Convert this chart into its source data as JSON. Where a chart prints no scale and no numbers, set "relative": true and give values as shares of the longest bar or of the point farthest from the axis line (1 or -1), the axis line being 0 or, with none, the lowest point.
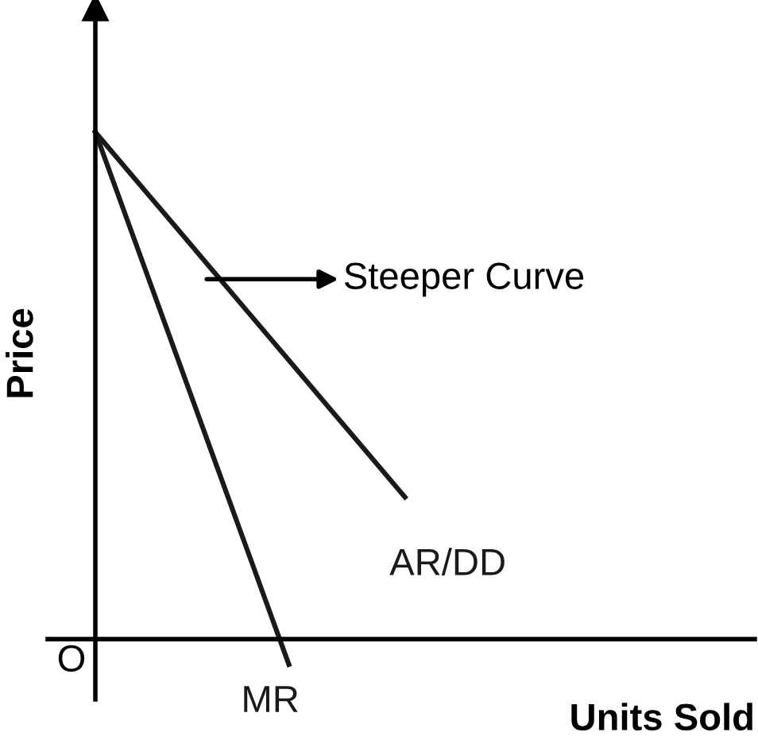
{
  "chart_data": {
    "type": "line",
    "relative": true,
    "xlabel": "Units Sold",
    "ylabel": "Price",
    "annotations": [
      "Steeper Curve",
      "O"
    ],
    "categories": [
      null,
      null,
      null,
      null,
      null,
      null,
      null,
      null,
      null
    ],
    "series": [
      {
        "name": "AR/DD",
        "color": "#1a1a1a",
        "values": [
          1,
          0.91,
          0.82,
          0.73,
          0.64,
          0.55,
          0.46,
          0.37,
          0.28
        ]
      },
      {
        "name": "MR",
        "color": "#1a1a1a",
        "values": [
          1,
          0.79,
          0.58,
          0.37,
          0.16,
          -0.05,
          null,
          null,
          null
        ]
      }
    ]
  }
}
